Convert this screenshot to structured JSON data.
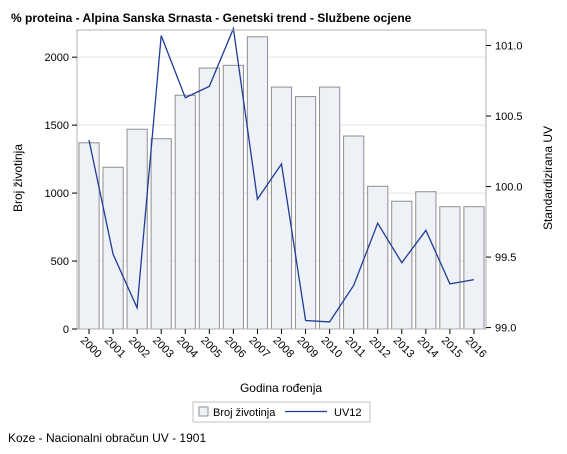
{
  "title": "% proteina - Alpina Sanska Srnasta - Genetski trend - Službene ocjene",
  "footnote": "Koze - Nacionalni obračun UV - 1901",
  "chart_data": {
    "type": "bar",
    "title": "% proteina - Alpina Sanska Srnasta - Genetski trend - Službene ocjene",
    "xlabel": "Godina rođenja",
    "ylabel": "Broj životinja",
    "y2label": "Standardizirana UV",
    "categories": [
      "2000",
      "2001",
      "2002",
      "2003",
      "2004",
      "2005",
      "2006",
      "2007",
      "2008",
      "2009",
      "2010",
      "2011",
      "2012",
      "2013",
      "2014",
      "2015",
      "2016"
    ],
    "ylim": [
      0,
      2200
    ],
    "yticks": [
      0,
      500,
      1000,
      1500,
      2000
    ],
    "y2lim": [
      98.99,
      101.11
    ],
    "y2ticks": [
      99.0,
      99.5,
      100.0,
      100.5,
      101.0
    ],
    "y2tick_labels": [
      "99.0",
      "99.5",
      "100.0",
      "100.5",
      "101.0"
    ],
    "grid": true,
    "legend_position": "bottom",
    "series": [
      {
        "name": "Broj životinja",
        "type": "bar",
        "axis": "left",
        "values": [
          1370,
          1190,
          1470,
          1400,
          1720,
          1920,
          1940,
          2150,
          1780,
          1710,
          1780,
          1420,
          1050,
          940,
          1010,
          900,
          900
        ],
        "color": "#eef1f6",
        "stroke": "#8f8f8f"
      },
      {
        "name": "UV12",
        "type": "line",
        "axis": "right",
        "values": [
          100.33,
          99.52,
          99.14,
          101.07,
          100.63,
          100.71,
          101.12,
          99.91,
          100.16,
          99.05,
          99.04,
          99.3,
          99.74,
          99.46,
          99.69,
          99.31,
          99.34
        ],
        "color": "#1f3c99"
      }
    ]
  }
}
